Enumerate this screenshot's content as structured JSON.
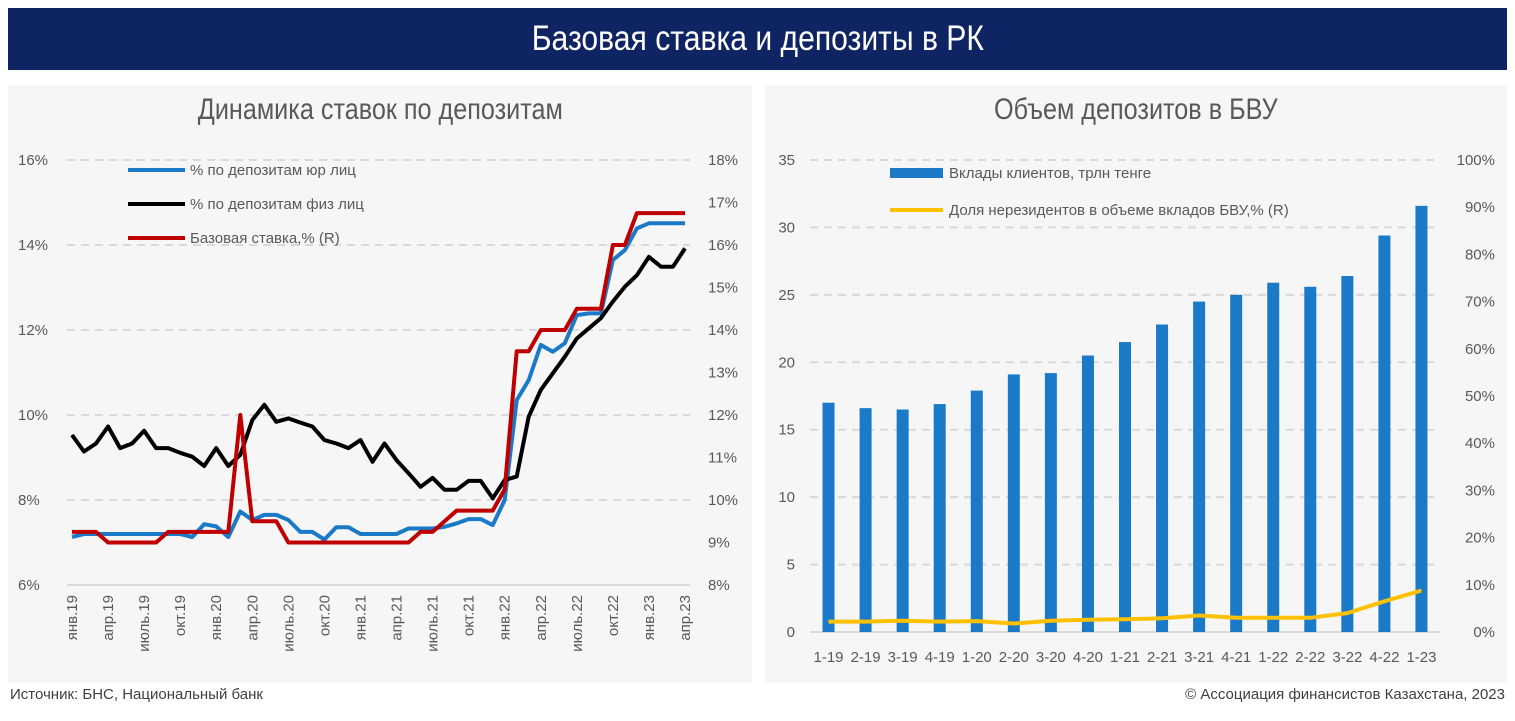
{
  "header": {
    "title": "Базовая ставка и депозиты в РК"
  },
  "footer": {
    "source": "Источник: БНС, Национальный банк",
    "copyright": "© Ассоциация финансистов Казахстана, 2023"
  },
  "chart_data": [
    {
      "type": "line",
      "title": "Динамика ставок по депозитам",
      "x_tick_labels": [
        "янв.19",
        "апр.19",
        "июль.19",
        "окт.19",
        "янв.20",
        "апр.20",
        "июль.20",
        "окт.20",
        "янв.21",
        "апр.21",
        "июль.21",
        "окт.21",
        "янв.22",
        "апр.22",
        "июль.22",
        "окт.22",
        "янв.23",
        "апр.23"
      ],
      "x_range": [
        "2019-01",
        "2023-04"
      ],
      "y_left": {
        "range": [
          6,
          16
        ],
        "ticks": [
          "6%",
          "8%",
          "10%",
          "12%",
          "14%",
          "16%"
        ]
      },
      "y_right": {
        "range": [
          8,
          18
        ],
        "ticks": [
          "8%",
          "9%",
          "10%",
          "11%",
          "12%",
          "13%",
          "14%",
          "15%",
          "16%",
          "17%",
          "18%"
        ]
      },
      "grid": true,
      "legend_position": "top-left",
      "series": [
        {
          "name": "% по депозитам юр лиц",
          "axis": "left",
          "color": "#1a7ac8",
          "values": [
            7.13,
            7.2,
            7.2,
            7.2,
            7.2,
            7.2,
            7.2,
            7.2,
            7.2,
            7.2,
            7.13,
            7.43,
            7.38,
            7.13,
            7.73,
            7.53,
            7.65,
            7.65,
            7.53,
            7.25,
            7.25,
            7.07,
            7.36,
            7.36,
            7.2,
            7.2,
            7.2,
            7.2,
            7.33,
            7.33,
            7.33,
            7.37,
            7.45,
            7.55,
            7.55,
            7.41,
            8.0,
            10.35,
            10.82,
            11.65,
            11.49,
            11.69,
            12.35,
            12.39,
            12.39,
            13.65,
            13.88,
            14.39,
            14.51,
            14.51,
            14.51,
            14.51
          ]
        },
        {
          "name": "% по депозитам физ лиц",
          "axis": "left",
          "color": "#000000",
          "values": [
            9.53,
            9.14,
            9.33,
            9.73,
            9.22,
            9.33,
            9.63,
            9.22,
            9.22,
            9.11,
            9.02,
            8.8,
            9.22,
            8.8,
            9.06,
            9.88,
            10.24,
            9.84,
            9.92,
            9.82,
            9.73,
            9.41,
            9.33,
            9.22,
            9.41,
            8.9,
            9.33,
            8.94,
            8.63,
            8.31,
            8.52,
            8.24,
            8.24,
            8.45,
            8.45,
            8.04,
            8.47,
            8.55,
            9.96,
            10.59,
            10.98,
            11.37,
            11.8,
            12.04,
            12.28,
            12.67,
            13.02,
            13.29,
            13.72,
            13.49,
            13.49,
            13.92
          ]
        },
        {
          "name": "Базовая ставка,% (R)",
          "axis": "right",
          "color": "#c00000",
          "values": [
            9.25,
            9.25,
            9.25,
            9.0,
            9.0,
            9.0,
            9.0,
            9.0,
            9.25,
            9.25,
            9.25,
            9.25,
            9.25,
            9.25,
            12.0,
            9.5,
            9.5,
            9.5,
            9.0,
            9.0,
            9.0,
            9.0,
            9.0,
            9.0,
            9.0,
            9.0,
            9.0,
            9.0,
            9.0,
            9.25,
            9.25,
            9.5,
            9.75,
            9.75,
            9.75,
            9.75,
            10.25,
            13.5,
            13.5,
            14.0,
            14.0,
            14.0,
            14.5,
            14.5,
            14.5,
            16.0,
            16.0,
            16.75,
            16.75,
            16.75,
            16.75,
            16.75
          ]
        }
      ]
    },
    {
      "type": "bar",
      "title": "Объем депозитов в БВУ",
      "categories": [
        "1-19",
        "2-19",
        "3-19",
        "4-19",
        "1-20",
        "2-20",
        "3-20",
        "4-20",
        "1-21",
        "2-21",
        "3-21",
        "4-21",
        "1-22",
        "2-22",
        "3-22",
        "4-22",
        "1-23"
      ],
      "y_left": {
        "range": [
          0,
          35
        ],
        "ticks": [
          "0",
          "5",
          "10",
          "15",
          "20",
          "25",
          "30",
          "35"
        ]
      },
      "y_right": {
        "range": [
          0,
          100
        ],
        "ticks": [
          "0%",
          "10%",
          "20%",
          "30%",
          "40%",
          "50%",
          "60%",
          "70%",
          "80%",
          "90%",
          "100%"
        ]
      },
      "grid": true,
      "legend_position": "top-left",
      "series": [
        {
          "name": "Вклады клиентов, трлн тенге",
          "type": "bar",
          "axis": "left",
          "color": "#1a7ac8",
          "values": [
            17.0,
            16.6,
            16.5,
            16.9,
            17.9,
            19.1,
            19.2,
            20.5,
            21.5,
            22.8,
            24.5,
            25.0,
            25.9,
            25.6,
            26.4,
            29.4,
            31.6
          ]
        },
        {
          "name": "Доля нерезидентов в объеме вкладов БВУ,% (R)",
          "type": "line",
          "axis": "right",
          "color": "#ffc000",
          "values": [
            2.2,
            2.2,
            2.4,
            2.2,
            2.3,
            1.8,
            2.4,
            2.6,
            2.7,
            2.9,
            3.5,
            3.0,
            3.0,
            3.0,
            4.0,
            6.5,
            8.8
          ]
        }
      ]
    }
  ]
}
